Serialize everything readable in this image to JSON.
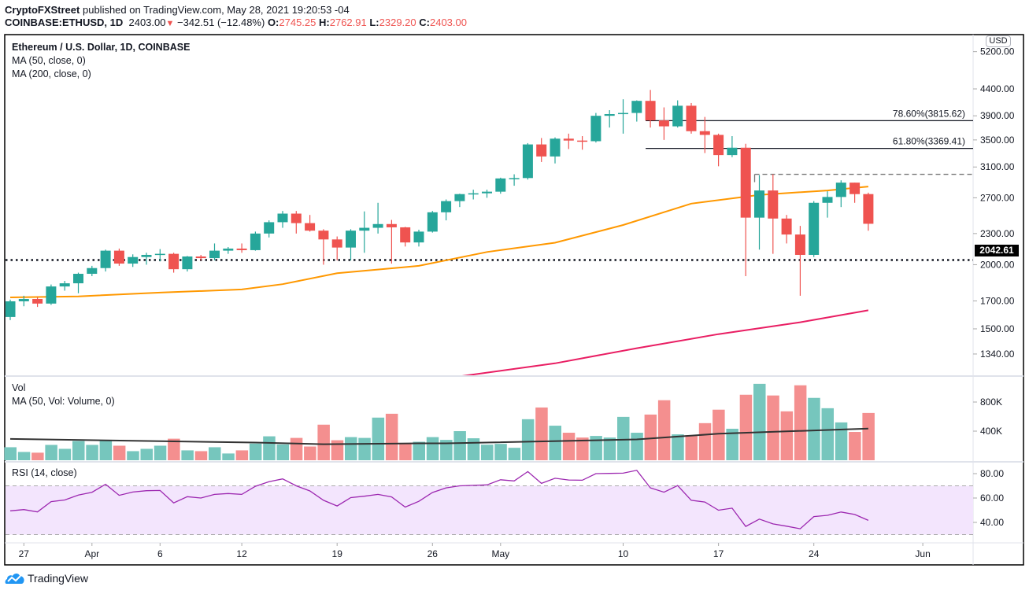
{
  "header": {
    "publisher": "CryptoFXStreet",
    "published_text": "published on TradingView.com, May 28, 2021 19:20:53 -04",
    "symbol": "COINBASE:ETHUSD, 1D",
    "last": "2403.00",
    "change": "−342.51 (−12.48%)",
    "o_label": "O:",
    "o": "2745.25",
    "h_label": "H:",
    "h": "2762.91",
    "l_label": "L:",
    "l": "2329.20",
    "c_label": "C:",
    "c": "2403.00",
    "down_icon": "triangle-down-icon"
  },
  "legend": {
    "title": "Ethereum / U.S. Dollar, 1D, COINBASE",
    "ma50": "MA (50, close, 0)",
    "ma200": "MA (200, close, 0)",
    "vol": "Vol",
    "vol_ma": "MA (50, Vol: Volume, 0)",
    "rsi": "RSI (14, close)"
  },
  "price_axis": {
    "currency": "USD",
    "ticks": [
      "5200.00",
      "4400.00",
      "3900.00",
      "3500.00",
      "3100.00",
      "2700.00",
      "2300.00",
      "2000.00",
      "1700.00",
      "1500.00",
      "1340.00"
    ],
    "last_price_label": "2042.61"
  },
  "volume_axis": {
    "ticks": [
      {
        "label": "800K",
        "value": 800
      },
      {
        "label": "400K",
        "value": 400
      }
    ]
  },
  "rsi_axis": {
    "ticks": [
      {
        "label": "80.00",
        "value": 80
      },
      {
        "label": "60.00",
        "value": 60
      },
      {
        "label": "40.00",
        "value": 40
      }
    ]
  },
  "date_axis": [
    {
      "label": "27",
      "date": "2021-03-27"
    },
    {
      "label": "Apr",
      "date": "2021-04-01"
    },
    {
      "label": "6",
      "date": "2021-04-06"
    },
    {
      "label": "12",
      "date": "2021-04-12"
    },
    {
      "label": "19",
      "date": "2021-04-19"
    },
    {
      "label": "26",
      "date": "2021-04-26"
    },
    {
      "label": "May",
      "date": "2021-05-01"
    },
    {
      "label": "10",
      "date": "2021-05-10"
    },
    {
      "label": "17",
      "date": "2021-05-17"
    },
    {
      "label": "24",
      "date": "2021-05-24"
    },
    {
      "label": "Jun",
      "date": "2021-06-01"
    }
  ],
  "footer": {
    "brand": "TradingView",
    "logo_icon": "tradingview-cloud-icon"
  },
  "colors": {
    "up": "#26a69a",
    "down": "#ef5350",
    "vol_up": "#76c6bd",
    "vol_down": "#f48f8f",
    "ma50": "#ff9800",
    "ma200": "#e91e63",
    "rsi": "#9c27b0",
    "rsi_band": "#f3e5fd",
    "vol_ma": "#333333"
  },
  "chart_data": {
    "type": "candlestick",
    "scale": "log",
    "ylim": [
      1240,
      5400
    ],
    "columns": [
      "date",
      "open",
      "high",
      "low",
      "close"
    ],
    "candles": [
      [
        "2021-03-26",
        1582,
        1710,
        1560,
        1697
      ],
      [
        "2021-03-27",
        1697,
        1740,
        1660,
        1715
      ],
      [
        "2021-03-28",
        1715,
        1730,
        1655,
        1680
      ],
      [
        "2021-03-29",
        1680,
        1830,
        1670,
        1814
      ],
      [
        "2021-03-30",
        1814,
        1860,
        1780,
        1840
      ],
      [
        "2021-03-31",
        1840,
        1930,
        1760,
        1920
      ],
      [
        "2021-04-01",
        1920,
        1990,
        1900,
        1970
      ],
      [
        "2021-04-02",
        1970,
        2140,
        1940,
        2130
      ],
      [
        "2021-04-03",
        2130,
        2150,
        1990,
        2010
      ],
      [
        "2021-04-04",
        2010,
        2095,
        1980,
        2070
      ],
      [
        "2021-04-05",
        2070,
        2110,
        2000,
        2090
      ],
      [
        "2021-04-06",
        2090,
        2145,
        2030,
        2100
      ],
      [
        "2021-04-07",
        2100,
        2110,
        1930,
        1960
      ],
      [
        "2021-04-08",
        1960,
        2080,
        1940,
        2075
      ],
      [
        "2021-04-09",
        2075,
        2090,
        2040,
        2060
      ],
      [
        "2021-04-10",
        2060,
        2200,
        2040,
        2130
      ],
      [
        "2021-04-11",
        2130,
        2165,
        2100,
        2150
      ],
      [
        "2021-04-12",
        2150,
        2200,
        2110,
        2135
      ],
      [
        "2021-04-13",
        2135,
        2320,
        2130,
        2300
      ],
      [
        "2021-04-14",
        2300,
        2440,
        2260,
        2420
      ],
      [
        "2021-04-15",
        2420,
        2545,
        2360,
        2515
      ],
      [
        "2021-04-16",
        2515,
        2545,
        2300,
        2410
      ],
      [
        "2021-04-17",
        2410,
        2500,
        2320,
        2330
      ],
      [
        "2021-04-18",
        2330,
        2345,
        2000,
        2240
      ],
      [
        "2021-04-19",
        2240,
        2270,
        2040,
        2160
      ],
      [
        "2021-04-20",
        2160,
        2345,
        2040,
        2330
      ],
      [
        "2021-04-21",
        2330,
        2540,
        2110,
        2360
      ],
      [
        "2021-04-22",
        2360,
        2640,
        2300,
        2400
      ],
      [
        "2021-04-23",
        2400,
        2445,
        2010,
        2365
      ],
      [
        "2021-04-24",
        2365,
        2370,
        2170,
        2210
      ],
      [
        "2021-04-25",
        2210,
        2340,
        2170,
        2320
      ],
      [
        "2021-04-26",
        2320,
        2545,
        2310,
        2530
      ],
      [
        "2021-04-27",
        2530,
        2680,
        2440,
        2660
      ],
      [
        "2021-04-28",
        2660,
        2750,
        2590,
        2745
      ],
      [
        "2021-04-29",
        2745,
        2800,
        2680,
        2755
      ],
      [
        "2021-04-30",
        2755,
        2800,
        2700,
        2775
      ],
      [
        "2021-05-01",
        2775,
        2955,
        2750,
        2945
      ],
      [
        "2021-05-02",
        2945,
        3000,
        2850,
        2950
      ],
      [
        "2021-05-03",
        2950,
        3450,
        2930,
        3430
      ],
      [
        "2021-05-04",
        3430,
        3530,
        3170,
        3250
      ],
      [
        "2021-05-05",
        3250,
        3540,
        3150,
        3520
      ],
      [
        "2021-05-06",
        3520,
        3600,
        3360,
        3490
      ],
      [
        "2021-05-07",
        3490,
        3560,
        3350,
        3480
      ],
      [
        "2021-05-08",
        3480,
        3950,
        3460,
        3900
      ],
      [
        "2021-05-09",
        3900,
        4000,
        3700,
        3930
      ],
      [
        "2021-05-10",
        3930,
        4200,
        3600,
        3950
      ],
      [
        "2021-05-11",
        3950,
        4180,
        3800,
        4170
      ],
      [
        "2021-05-12",
        4170,
        4380,
        3700,
        3820
      ],
      [
        "2021-05-13",
        3820,
        4050,
        3500,
        3720
      ],
      [
        "2021-05-14",
        3720,
        4180,
        3700,
        4080
      ],
      [
        "2021-05-15",
        4080,
        4130,
        3600,
        3640
      ],
      [
        "2021-05-16",
        3640,
        3880,
        3300,
        3580
      ],
      [
        "2021-05-17",
        3580,
        3600,
        3110,
        3270
      ],
      [
        "2021-05-18",
        3270,
        3560,
        3240,
        3380
      ],
      [
        "2021-05-19",
        3380,
        3440,
        1900,
        2470
      ],
      [
        "2021-05-20",
        2470,
        2990,
        2140,
        2790
      ],
      [
        "2021-05-21",
        2790,
        3000,
        2100,
        2460
      ],
      [
        "2021-05-22",
        2460,
        2500,
        2200,
        2290
      ],
      [
        "2021-05-23",
        2290,
        2380,
        1740,
        2090
      ],
      [
        "2021-05-24",
        2090,
        2660,
        2070,
        2640
      ],
      [
        "2021-05-25",
        2640,
        2780,
        2470,
        2710
      ],
      [
        "2021-05-26",
        2710,
        2920,
        2590,
        2890
      ],
      [
        "2021-05-27",
        2890,
        2890,
        2640,
        2745
      ],
      [
        "2021-05-28",
        2745.25,
        2762.91,
        2329.2,
        2403.0
      ]
    ],
    "ma50": [
      [
        "2021-03-26",
        1727
      ],
      [
        "2021-03-31",
        1735
      ],
      [
        "2021-04-06",
        1765
      ],
      [
        "2021-04-12",
        1790
      ],
      [
        "2021-04-15",
        1833
      ],
      [
        "2021-04-19",
        1925
      ],
      [
        "2021-04-25",
        1990
      ],
      [
        "2021-04-30",
        2117
      ],
      [
        "2021-05-05",
        2207
      ],
      [
        "2021-05-10",
        2390
      ],
      [
        "2021-05-15",
        2630
      ],
      [
        "2021-05-20",
        2735
      ],
      [
        "2021-05-25",
        2790
      ],
      [
        "2021-05-28",
        2840
      ]
    ],
    "ma200": [
      [
        "2021-04-28",
        1212
      ],
      [
        "2021-05-05",
        1285
      ],
      [
        "2021-05-11",
        1375
      ],
      [
        "2021-05-17",
        1465
      ],
      [
        "2021-05-23",
        1545
      ],
      [
        "2021-05-28",
        1630
      ]
    ],
    "volume_k": [
      179,
      114,
      104,
      211,
      157,
      264,
      211,
      275,
      200,
      125,
      157,
      200,
      296,
      136,
      125,
      179,
      93,
      136,
      229,
      329,
      218,
      307,
      189,
      489,
      275,
      318,
      307,
      586,
      639,
      232,
      254,
      318,
      280,
      400,
      302,
      214,
      225,
      171,
      564,
      725,
      475,
      378,
      312,
      334,
      312,
      596,
      378,
      628,
      825,
      356,
      345,
      510,
      695,
      433,
      900,
      1050,
      890,
      672,
      1030,
      857,
      715,
      520,
      389,
      650
    ],
    "volume_ma_k": [
      [
        "2021-03-26",
        293
      ],
      [
        "2021-04-13",
        243
      ],
      [
        "2021-04-18",
        221
      ],
      [
        "2021-04-25",
        232
      ],
      [
        "2021-04-27",
        232
      ],
      [
        "2021-05-11",
        286
      ],
      [
        "2021-05-17",
        364
      ],
      [
        "2021-05-28",
        436
      ]
    ],
    "rsi": [
      49.5,
      50.5,
      48.6,
      57,
      58.4,
      62.4,
      64.7,
      71.3,
      62.2,
      64.9,
      66,
      66.2,
      56,
      61.1,
      60,
      63,
      63.7,
      63,
      69.6,
      73.4,
      75.7,
      70,
      65.8,
      58.1,
      53.5,
      60.3,
      61.5,
      63,
      60.9,
      52.6,
      57.3,
      64.5,
      68.3,
      70,
      70.4,
      70.8,
      75,
      74,
      81.7,
      72,
      76.2,
      74.8,
      74.6,
      80,
      80.2,
      80.4,
      82.7,
      68.3,
      64.8,
      70.2,
      58.1,
      56.7,
      50,
      51.7,
      36.7,
      42.7,
      38.8,
      36.9,
      34.8,
      44.8,
      45.8,
      48.5,
      46.5,
      41.7
    ],
    "rsi_bands": [
      70,
      30
    ],
    "horizontal_lines": [
      {
        "label": "78.60%(3815.62)",
        "price": 3815.62,
        "from": "2021-05-12",
        "style": "solid"
      },
      {
        "label": "61.80%(3369.41)",
        "price": 3369.41,
        "from": "2021-05-12",
        "style": "solid"
      },
      {
        "label": "",
        "price": 3000,
        "from": "2021-05-20",
        "style": "dashed"
      },
      {
        "label": "",
        "price": 2042.61,
        "from": "2021-03-26",
        "style": "dotted"
      }
    ]
  }
}
